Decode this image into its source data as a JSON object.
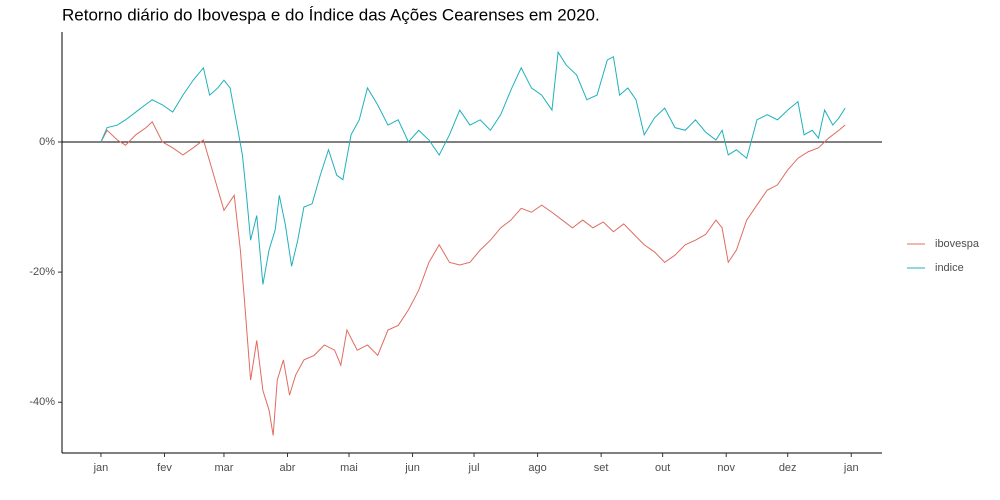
{
  "chart_data": {
    "type": "line",
    "title": "Retorno diário do Ibovespa e do Índice das Ações Cearenses em 2020.",
    "xlim": [
      -19,
      381
    ],
    "xticks": [
      {
        "value": 0,
        "label": "jan"
      },
      {
        "value": 31,
        "label": "fev"
      },
      {
        "value": 60,
        "label": "mar"
      },
      {
        "value": 91,
        "label": "abr"
      },
      {
        "value": 121,
        "label": "mai"
      },
      {
        "value": 152,
        "label": "jun"
      },
      {
        "value": 182,
        "label": "jul"
      },
      {
        "value": 213,
        "label": "ago"
      },
      {
        "value": 244,
        "label": "set"
      },
      {
        "value": 274,
        "label": "out"
      },
      {
        "value": 305,
        "label": "nov"
      },
      {
        "value": 335,
        "label": "dez"
      },
      {
        "value": 366,
        "label": "jan"
      }
    ],
    "ylim": [
      -47.8,
      16.9
    ],
    "yticks": [
      {
        "value": -40,
        "label": "-40%"
      },
      {
        "value": -20,
        "label": "-20%"
      },
      {
        "value": 0,
        "label": "0%"
      }
    ],
    "hline": 0,
    "series": [
      {
        "name": "ibovespa",
        "color": "#e06c60",
        "x": [
          0,
          3,
          8,
          12,
          17,
          22,
          25,
          30,
          35,
          40,
          45,
          50,
          55,
          60,
          65,
          68,
          70,
          73,
          76,
          79,
          82,
          84,
          86,
          89,
          92,
          95,
          99,
          104,
          109,
          114,
          117,
          120,
          125,
          130,
          135,
          140,
          145,
          150,
          155,
          160,
          165,
          170,
          175,
          180,
          185,
          190,
          195,
          200,
          205,
          210,
          215,
          220,
          225,
          230,
          235,
          240,
          245,
          250,
          255,
          260,
          265,
          270,
          275,
          280,
          285,
          290,
          295,
          300,
          303,
          306,
          310,
          315,
          320,
          325,
          330,
          335,
          340,
          345,
          350,
          355,
          360,
          363
        ],
        "values": [
          0,
          1.8,
          0.3,
          -0.5,
          1.1,
          2.2,
          3.1,
          0,
          -0.9,
          -2,
          -0.9,
          0.3,
          -5.1,
          -10.5,
          -8.2,
          -16.6,
          -24.3,
          -36.6,
          -30.5,
          -38.2,
          -41.2,
          -45.1,
          -36.6,
          -33.5,
          -38.9,
          -35.8,
          -33.5,
          -32.8,
          -31.2,
          -32,
          -34.3,
          -28.9,
          -32,
          -31.2,
          -32.8,
          -28.9,
          -28.2,
          -25.8,
          -22.8,
          -18.5,
          -15.8,
          -18.5,
          -18.9,
          -18.5,
          -16.6,
          -15.1,
          -13.2,
          -12,
          -10.2,
          -10.8,
          -9.7,
          -10.8,
          -12,
          -13.2,
          -12,
          -13.2,
          -12.3,
          -13.8,
          -12.6,
          -14.2,
          -15.8,
          -16.9,
          -18.5,
          -17.4,
          -15.8,
          -15.1,
          -14.2,
          -12,
          -13.2,
          -18.5,
          -16.6,
          -12,
          -9.7,
          -7.4,
          -6.6,
          -4.3,
          -2.5,
          -1.5,
          -0.9,
          0.6,
          1.8,
          2.6
        ]
      },
      {
        "name": "indice",
        "color": "#1fb1bb",
        "x": [
          0,
          3,
          8,
          12,
          17,
          22,
          25,
          30,
          35,
          40,
          45,
          50,
          53,
          57,
          60,
          63,
          65,
          67,
          69,
          71,
          73,
          76,
          79,
          82,
          85,
          87,
          90,
          93,
          96,
          99,
          103,
          107,
          111,
          115,
          118,
          122,
          126,
          130,
          135,
          140,
          145,
          150,
          155,
          160,
          165,
          170,
          175,
          180,
          185,
          190,
          195,
          200,
          205,
          210,
          215,
          220,
          223,
          227,
          232,
          237,
          242,
          247,
          250,
          253,
          257,
          261,
          265,
          270,
          275,
          280,
          285,
          290,
          295,
          300,
          303,
          306,
          310,
          315,
          320,
          325,
          330,
          335,
          340,
          343,
          347,
          350,
          353,
          357,
          360,
          363
        ],
        "values": [
          0,
          2.2,
          2.6,
          3.4,
          4.6,
          5.8,
          6.5,
          5.7,
          4.6,
          7.2,
          9.5,
          11.4,
          7.2,
          8.3,
          9.5,
          8.3,
          4.9,
          1.5,
          -2,
          -8.2,
          -15.1,
          -11.3,
          -21.9,
          -16.6,
          -13.5,
          -8.2,
          -12.8,
          -19.1,
          -15.1,
          -10,
          -9.5,
          -5.1,
          -1.2,
          -5.1,
          -5.8,
          1.1,
          3.4,
          8.3,
          5.7,
          2.6,
          3.4,
          0,
          1.8,
          0.3,
          -2,
          1.1,
          4.9,
          2.6,
          3.4,
          1.8,
          4.2,
          8,
          11.4,
          8.3,
          7.2,
          4.9,
          13.8,
          11.8,
          10.3,
          6.5,
          7.2,
          12.6,
          13.1,
          7.2,
          8.3,
          6.5,
          1.1,
          3.7,
          5.2,
          2.2,
          1.8,
          3.4,
          1.5,
          0.3,
          1.8,
          -2,
          -1.2,
          -2.5,
          3.4,
          4.2,
          3.4,
          4.9,
          6.2,
          1.1,
          1.8,
          0.6,
          4.9,
          2.6,
          3.7,
          5.2
        ]
      }
    ]
  }
}
